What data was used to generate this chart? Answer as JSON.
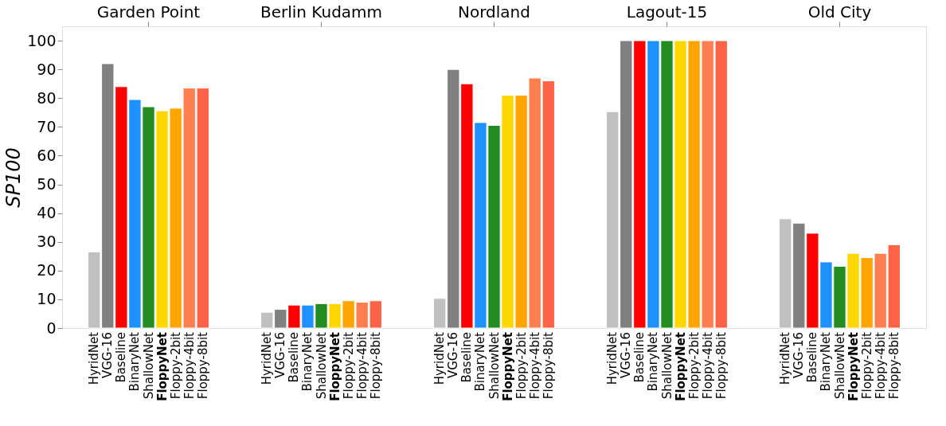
{
  "chart_data": {
    "type": "bar",
    "ylabel": "SP100",
    "categories": [
      "Garden Point",
      "Berlin Kudamm",
      "Nordland",
      "Lagout-15",
      "Old City"
    ],
    "series": [
      {
        "name": "HyridNet",
        "color": "#c0c0c0",
        "values": [
          26.5,
          5.5,
          10.3,
          75.3,
          38
        ]
      },
      {
        "name": "VGG-16",
        "color": "#808080",
        "values": [
          92,
          6.5,
          90,
          100,
          36.5
        ]
      },
      {
        "name": "Baseline",
        "color": "#ff0000",
        "values": [
          84,
          8,
          85,
          100,
          33
        ]
      },
      {
        "name": "BinaryNet",
        "color": "#1e90ff",
        "values": [
          79.5,
          8,
          71.5,
          100,
          23
        ]
      },
      {
        "name": "ShallowNet",
        "color": "#228b22",
        "values": [
          77,
          8.5,
          70.5,
          100,
          21.5
        ]
      },
      {
        "name": "FloppyNet",
        "color": "#ffd700",
        "values": [
          75.6,
          8.5,
          81,
          100,
          26
        ]
      },
      {
        "name": "Floppy-2bit",
        "color": "#ffa500",
        "values": [
          76.5,
          9.5,
          81,
          100,
          24.5
        ]
      },
      {
        "name": "Floppy-4bit",
        "color": "#ff7f50",
        "values": [
          83.5,
          9,
          87,
          100,
          26
        ]
      },
      {
        "name": "Floppy-8bit",
        "color": "#ff6347",
        "values": [
          83.5,
          9.5,
          86,
          100,
          29
        ]
      }
    ],
    "ylim": [
      0,
      105
    ],
    "yticks": [
      0,
      10,
      20,
      30,
      40,
      50,
      60,
      70,
      80,
      90,
      100
    ],
    "grid": false,
    "legend": false
  }
}
